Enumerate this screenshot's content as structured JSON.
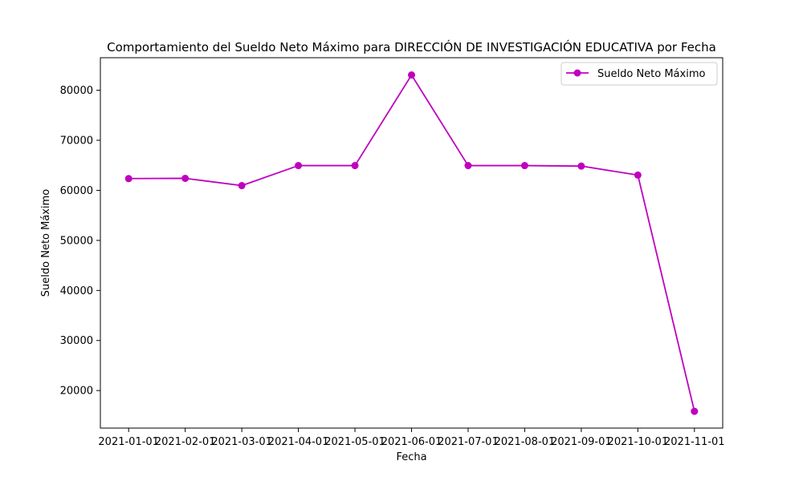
{
  "chart_data": {
    "type": "line",
    "title": "Comportamiento del Sueldo Neto Máximo para DIRECCIÓN DE INVESTIGACIÓN EDUCATIVA por Fecha",
    "xlabel": "Fecha",
    "ylabel": "Sueldo Neto Máximo",
    "x": [
      "2021-01-01",
      "2021-02-01",
      "2021-03-01",
      "2021-04-01",
      "2021-05-01",
      "2021-06-01",
      "2021-07-01",
      "2021-08-01",
      "2021-09-01",
      "2021-10-01",
      "2021-11-01"
    ],
    "ylim": [
      12500,
      86500
    ],
    "yticks": [
      20000,
      30000,
      40000,
      50000,
      60000,
      70000,
      80000
    ],
    "series": [
      {
        "name": "Sueldo Neto Máximo",
        "color": "#bf00bf",
        "values": [
          62350,
          62400,
          60950,
          64950,
          64950,
          83050,
          64950,
          64950,
          64850,
          63050,
          15850
        ]
      }
    ],
    "grid": false,
    "legend": "top-right"
  }
}
